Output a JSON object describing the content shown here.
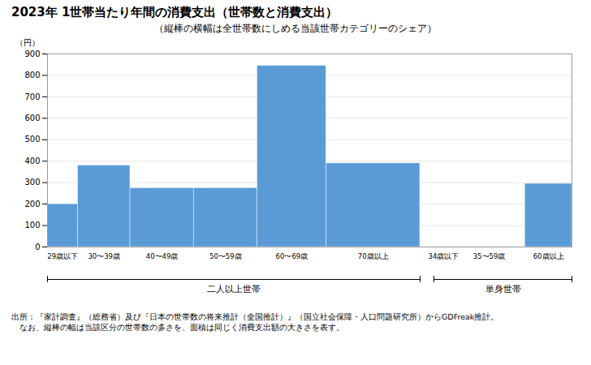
{
  "chart_data": {
    "type": "bar",
    "title": "2023年 1世帯当たり年間の消費支出（世帯数と消費支出）",
    "subtitle": "（縦棒の横幅は全世帯数にしめる当該世帯カテゴリーのシェア）",
    "ylabel": "（円）",
    "categories": [
      "29歳以下",
      "30〜39歳",
      "40〜49歳",
      "50〜59歳",
      "60〜69歳",
      "70歳以上",
      "34歳以下",
      "35〜59歳",
      "60歳以上"
    ],
    "values": [
      200,
      380,
      275,
      275,
      845,
      390,
      0,
      0,
      295
    ],
    "widths": [
      0.055,
      0.095,
      0.115,
      0.115,
      0.125,
      0.17,
      0.035,
      0.13,
      0.085
    ],
    "groups": [
      "二人以上世帯",
      "二人以上世帯",
      "二人以上世帯",
      "二人以上世帯",
      "二人以上世帯",
      "二人以上世帯",
      "単身世帯",
      "単身世帯",
      "単身世帯"
    ],
    "color": "#5B9BD5",
    "ylim": [
      0,
      900
    ],
    "yticks": [
      0,
      100,
      200,
      300,
      400,
      500,
      600,
      700,
      800,
      900
    ],
    "grid": true,
    "footnotes": [
      "出所：『家計調査』（総務省）及び『日本の世帯数の将来推計（全国推計）』（国立社会保障・人口問題研究所）からGDFreak推計。",
      "　なお、縦棒の幅は当該区分の世帯数の多さを、面積は同じく消費支出額の大きさを表す。"
    ]
  }
}
